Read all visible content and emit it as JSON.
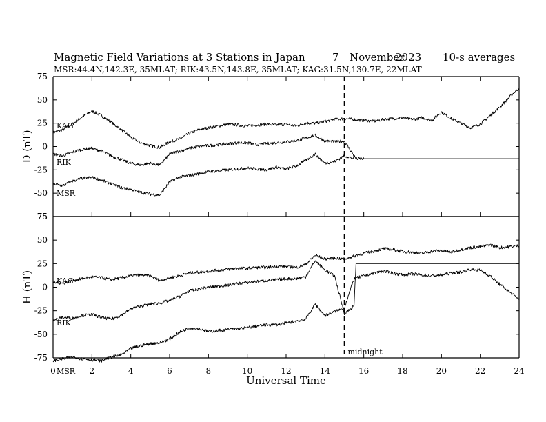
{
  "header": {
    "title": "Magnetic Field Variations at 3 Stations in Japan",
    "date_day": "7",
    "date_month": "November",
    "date_year": "2023",
    "averaging": "10-s averages",
    "stations_line": "MSR:44.4N,142.3E, 35MLAT;   RIK:43.5N,143.8E, 35MLAT;   KAG:31.5N,130.7E, 22MLAT"
  },
  "chart_data": [
    {
      "type": "line",
      "panel": "D",
      "ylabel": "D (nT)",
      "ylim": [
        -75,
        75
      ],
      "yticks": [
        -75,
        -50,
        -25,
        0,
        25,
        50,
        75
      ],
      "xlim": [
        0,
        24
      ],
      "series": [
        {
          "name": "KAG",
          "x": [
            0,
            0.5,
            1,
            1.5,
            2,
            2.5,
            3,
            3.5,
            4,
            4.5,
            5,
            5.5,
            6,
            6.5,
            7,
            7.5,
            8,
            8.5,
            9,
            9.5,
            10,
            10.5,
            11,
            11.5,
            12,
            12.5,
            13,
            13.5,
            14,
            14.5,
            15,
            15.5,
            16,
            16.5,
            17,
            17.5,
            18,
            18.5,
            19,
            19.5,
            20,
            20.5,
            21,
            21.5,
            22,
            22.5,
            23,
            23.5,
            24
          ],
          "values": [
            15,
            18,
            24,
            32,
            38,
            33,
            26,
            18,
            10,
            4,
            1,
            -1,
            5,
            8,
            14,
            18,
            20,
            22,
            24,
            23,
            22,
            23,
            24,
            23,
            24,
            22,
            25,
            25,
            27,
            29,
            30,
            29,
            28,
            27,
            29,
            30,
            31,
            29,
            31,
            28,
            37,
            30,
            25,
            20,
            24,
            33,
            42,
            53,
            63
          ]
        },
        {
          "name": "RIK",
          "x": [
            0,
            0.5,
            1,
            1.5,
            2,
            2.5,
            3,
            3.5,
            4,
            4.5,
            5,
            5.5,
            6,
            6.5,
            7,
            7.5,
            8,
            8.5,
            9,
            9.5,
            10,
            10.5,
            11,
            11.5,
            12,
            12.5,
            13,
            13.5,
            14,
            14.5,
            15,
            15.5,
            15.6,
            16,
            24
          ],
          "values": [
            -8,
            -10,
            -6,
            -3,
            -2,
            -5,
            -10,
            -14,
            -18,
            -20,
            -18,
            -20,
            -8,
            -5,
            -2,
            0,
            1,
            2,
            3,
            4,
            4,
            2,
            3,
            4,
            5,
            6,
            9,
            12,
            6,
            5,
            6,
            -10,
            -13,
            -13,
            -13
          ]
        },
        {
          "name": "MSR",
          "x": [
            0,
            0.5,
            1,
            1.5,
            2,
            2.5,
            3,
            3.5,
            4,
            4.5,
            5,
            5.5,
            6,
            6.5,
            7,
            7.5,
            8,
            8.5,
            9,
            9.5,
            10,
            10.5,
            11,
            11.5,
            12,
            12.5,
            13,
            13.5,
            14,
            14.5,
            15,
            15.5
          ],
          "values": [
            -40,
            -42,
            -37,
            -34,
            -33,
            -36,
            -40,
            -44,
            -46,
            -49,
            -51,
            -52,
            -38,
            -33,
            -31,
            -29,
            -27,
            -26,
            -25,
            -24,
            -23,
            -24,
            -25,
            -22,
            -24,
            -21,
            -15,
            -8,
            -18,
            -16,
            -10,
            -13
          ]
        }
      ],
      "annotations": [
        {
          "text": "KAG"
        },
        {
          "text": "RIK"
        },
        {
          "text": "MSR"
        }
      ]
    },
    {
      "type": "line",
      "panel": "H",
      "xlabel": "Universal Time",
      "ylabel": "H (nT)",
      "ylim": [
        -75,
        75
      ],
      "yticks": [
        -75,
        -50,
        -25,
        0,
        25,
        50,
        75
      ],
      "xlim": [
        0,
        24
      ],
      "xticks": [
        0,
        2,
        4,
        6,
        8,
        10,
        12,
        14,
        16,
        18,
        20,
        22,
        24
      ],
      "series": [
        {
          "name": "KAG",
          "x": [
            0,
            0.5,
            1,
            1.5,
            2,
            2.5,
            3,
            3.5,
            4,
            4.5,
            5,
            5.5,
            6,
            6.5,
            7,
            7.5,
            8,
            8.5,
            9,
            9.5,
            10,
            10.5,
            11,
            11.5,
            12,
            12.5,
            13,
            13.5,
            14,
            14.5,
            15,
            15.5,
            16,
            16.5,
            17,
            17.5,
            18,
            18.5,
            19,
            19.5,
            20,
            20.5,
            21,
            21.5,
            22,
            22.5,
            23,
            23.5,
            24
          ],
          "values": [
            5,
            4,
            7,
            9,
            11,
            10,
            8,
            10,
            12,
            13,
            12,
            7,
            10,
            12,
            15,
            16,
            17,
            18,
            19,
            20,
            20,
            21,
            21,
            22,
            22,
            21,
            24,
            34,
            30,
            31,
            30,
            33,
            36,
            38,
            41,
            40,
            38,
            37,
            36,
            38,
            39,
            37,
            40,
            42,
            43,
            45,
            42,
            43,
            44
          ]
        },
        {
          "name": "RIK",
          "x": [
            0,
            0.5,
            1,
            1.5,
            2,
            2.5,
            3,
            3.5,
            4,
            4.5,
            5,
            5.5,
            6,
            6.5,
            7,
            7.5,
            8,
            8.5,
            9,
            9.5,
            10,
            10.5,
            11,
            11.5,
            12,
            12.5,
            13,
            13.5,
            14,
            14.5,
            15,
            15.5,
            15.6,
            24
          ],
          "values": [
            -35,
            -32,
            -33,
            -30,
            -29,
            -32,
            -34,
            -30,
            -23,
            -20,
            -18,
            -17,
            -14,
            -10,
            -4,
            -2,
            0,
            1,
            2,
            4,
            5,
            6,
            7,
            8,
            9,
            9,
            11,
            28,
            18,
            12,
            -28,
            -20,
            25,
            25
          ]
        },
        {
          "name": "MSR",
          "x": [
            0,
            0.5,
            1,
            1.5,
            2,
            2.5,
            3,
            3.5,
            4,
            4.5,
            5,
            5.5,
            6,
            6.5,
            7,
            7.5,
            8,
            8.5,
            9,
            9.5,
            10,
            10.5,
            11,
            11.5,
            12,
            12.5,
            13,
            13.5,
            14,
            14.5,
            15,
            15.5,
            16,
            16.5,
            17,
            17.5,
            18,
            18.5,
            19,
            19.5,
            20,
            20.5,
            21,
            21.5,
            22,
            22.5,
            23,
            23.5,
            24
          ],
          "values": [
            -78,
            -76,
            -74,
            -76,
            -77,
            -78,
            -74,
            -72,
            -65,
            -62,
            -60,
            -59,
            -55,
            -48,
            -43,
            -44,
            -47,
            -46,
            -45,
            -44,
            -43,
            -41,
            -40,
            -40,
            -38,
            -36,
            -34,
            -18,
            -30,
            -26,
            -22,
            9,
            12,
            15,
            17,
            15,
            13,
            14,
            13,
            12,
            13,
            15,
            16,
            19,
            18,
            12,
            3,
            -5,
            -13
          ]
        }
      ],
      "annotations": [
        {
          "text": "KAG"
        },
        {
          "text": "RIK"
        },
        {
          "text": "MSR"
        },
        {
          "text": "midnight"
        }
      ]
    }
  ]
}
